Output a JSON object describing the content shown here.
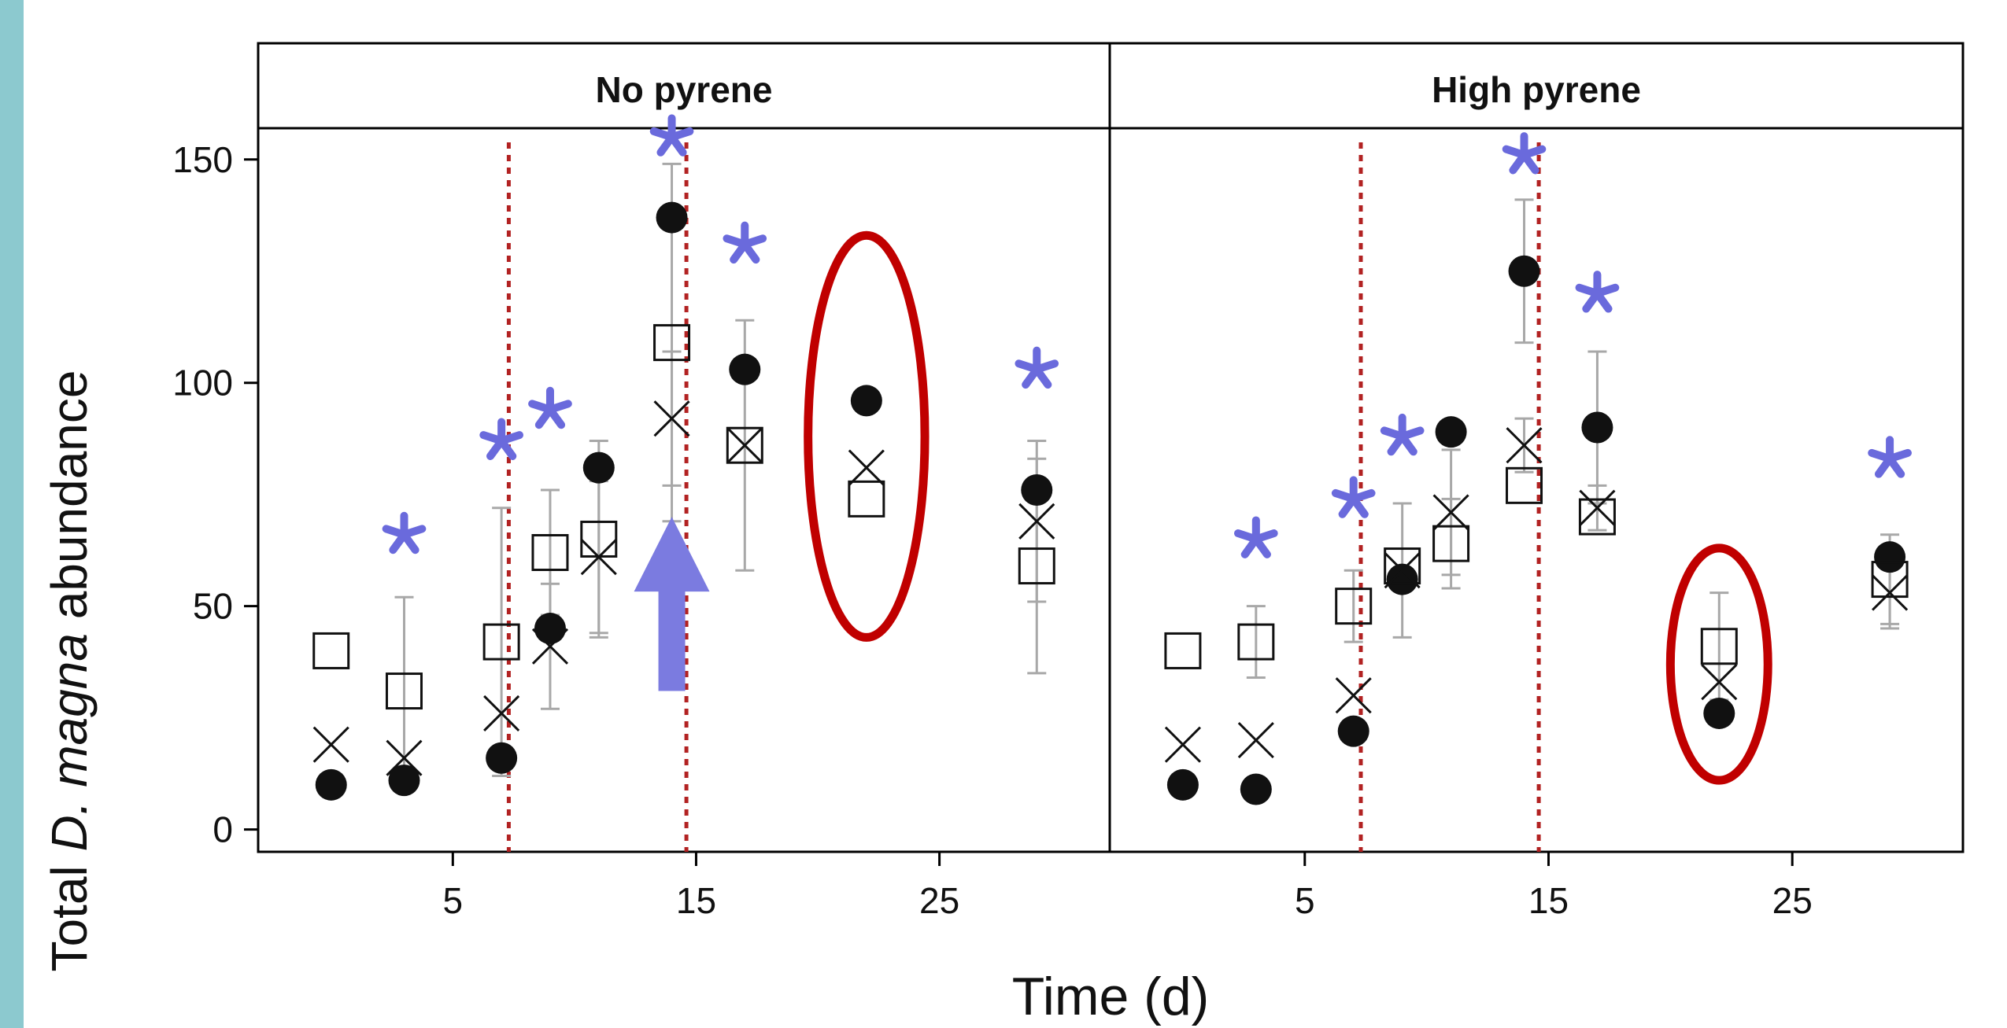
{
  "colors": {
    "accent_bar": "#8cc9cf",
    "threshold_line": "#b22222",
    "highlight_circle": "#c00000",
    "asterisk": "#6a6adc",
    "arrow": "#7b7be0",
    "error_bar": "#a8a8a8",
    "marker": "#111111"
  },
  "chart_data": {
    "type": "scatter",
    "ylabel": {
      "prefix": "Total ",
      "italic": "D. magna",
      "suffix": " abundance"
    },
    "xlabel": "Time (d)",
    "x_ticks": [
      "5",
      "15",
      "25"
    ],
    "y_ticks": [
      "0",
      "50",
      "100",
      "150"
    ],
    "xlim": [
      -3,
      32
    ],
    "ylim": [
      -5,
      172
    ],
    "y_panel_top_value": 157,
    "grid": false,
    "legend": "none",
    "panels": [
      {
        "title": "No pyrene",
        "vertical_lines_x": [
          7.3,
          14.6
        ],
        "asterisk_days": [
          3,
          7,
          9,
          14,
          17,
          29
        ],
        "asterisk_y": [
          66,
          87,
          94,
          155,
          131,
          103
        ],
        "arrow": {
          "x": 14,
          "y_tail": 31,
          "y_head": 70
        },
        "highlight_ellipses": [
          {
            "cx": 22,
            "cy": 88,
            "rx": 2.4,
            "ry": 45
          }
        ],
        "series": [
          {
            "marker": "filled-circle",
            "points": [
              [
                0,
                10,
                0
              ],
              [
                3,
                11,
                0
              ],
              [
                7,
                16,
                0
              ],
              [
                9,
                45,
                0
              ],
              [
                11,
                81,
                0
              ],
              [
                14,
                137,
                0
              ],
              [
                17,
                103,
                0
              ],
              [
                22,
                96,
                0
              ],
              [
                29,
                76,
                0
              ]
            ]
          },
          {
            "marker": "open-square",
            "points": [
              [
                0,
                40,
                0
              ],
              [
                3,
                31,
                21
              ],
              [
                7,
                42,
                30
              ],
              [
                9,
                62,
                14
              ],
              [
                11,
                65,
                22
              ],
              [
                14,
                109,
                40
              ],
              [
                17,
                86,
                28
              ],
              [
                22,
                74,
                0
              ],
              [
                29,
                59,
                24
              ]
            ]
          },
          {
            "marker": "x-cross",
            "points": [
              [
                0,
                19,
                0
              ],
              [
                3,
                16,
                0
              ],
              [
                7,
                26,
                0
              ],
              [
                9,
                41,
                14
              ],
              [
                11,
                61,
                17
              ],
              [
                14,
                92,
                15
              ],
              [
                17,
                86,
                0
              ],
              [
                22,
                81,
                0
              ],
              [
                29,
                69,
                18
              ]
            ]
          }
        ]
      },
      {
        "title": "High pyrene",
        "vertical_lines_x": [
          7.3,
          14.6
        ],
        "asterisk_days": [
          3,
          7,
          9,
          14,
          17,
          29
        ],
        "asterisk_y": [
          65,
          74,
          88,
          151,
          120,
          83
        ],
        "arrow": null,
        "highlight_ellipses": [
          {
            "cx": 22,
            "cy": 37,
            "rx": 2.0,
            "ry": 26
          }
        ],
        "series": [
          {
            "marker": "filled-circle",
            "points": [
              [
                0,
                10,
                0
              ],
              [
                3,
                9,
                0
              ],
              [
                7,
                22,
                0
              ],
              [
                9,
                56,
                0
              ],
              [
                11,
                89,
                0
              ],
              [
                14,
                125,
                16
              ],
              [
                17,
                90,
                17
              ],
              [
                22,
                26,
                0
              ],
              [
                29,
                61,
                0
              ]
            ]
          },
          {
            "marker": "open-square",
            "points": [
              [
                0,
                40,
                0
              ],
              [
                3,
                42,
                8
              ],
              [
                7,
                50,
                8
              ],
              [
                9,
                59,
                0
              ],
              [
                11,
                64,
                10
              ],
              [
                14,
                77,
                0
              ],
              [
                17,
                70,
                0
              ],
              [
                22,
                41,
                12
              ],
              [
                29,
                56,
                10
              ]
            ]
          },
          {
            "marker": "x-cross",
            "points": [
              [
                0,
                19,
                0
              ],
              [
                3,
                20,
                0
              ],
              [
                7,
                30,
                0
              ],
              [
                9,
                58,
                15
              ],
              [
                11,
                71,
                14
              ],
              [
                14,
                86,
                6
              ],
              [
                17,
                72,
                5
              ],
              [
                22,
                33,
                0
              ],
              [
                29,
                53,
                8
              ]
            ]
          }
        ]
      }
    ]
  }
}
